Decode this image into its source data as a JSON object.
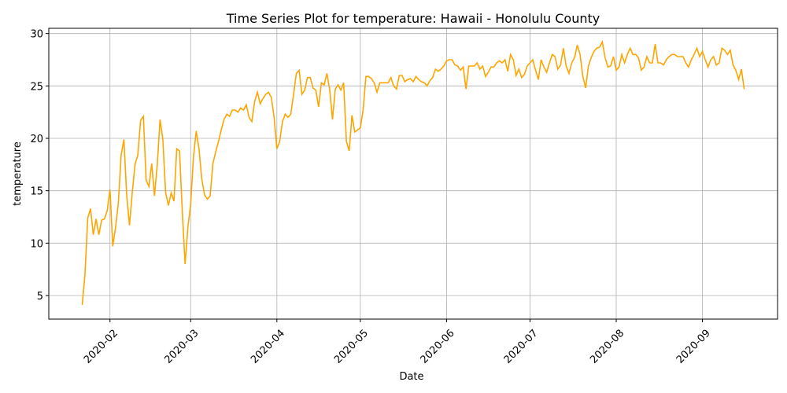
{
  "chart_data": {
    "type": "line",
    "title": "Time Series Plot for temperature: Hawaii - Honolulu County",
    "xlabel": "Date",
    "ylabel": "temperature",
    "color": "#ffa500",
    "grid": true,
    "xlim": [
      "2020-01-10",
      "2020-09-28"
    ],
    "xticks": [
      {
        "value": "2020-02-01",
        "label": "2020-02"
      },
      {
        "value": "2020-03-01",
        "label": "2020-03"
      },
      {
        "value": "2020-04-01",
        "label": "2020-04"
      },
      {
        "value": "2020-05-01",
        "label": "2020-05"
      },
      {
        "value": "2020-06-01",
        "label": "2020-06"
      },
      {
        "value": "2020-07-01",
        "label": "2020-07"
      },
      {
        "value": "2020-08-01",
        "label": "2020-08"
      },
      {
        "value": "2020-09-01",
        "label": "2020-09"
      }
    ],
    "ylim": [
      2.75,
      30.5
    ],
    "yticks": [
      5,
      10,
      15,
      20,
      25,
      30
    ],
    "x": [
      "2020-01-22",
      "2020-01-23",
      "2020-01-24",
      "2020-01-25",
      "2020-01-26",
      "2020-01-27",
      "2020-01-28",
      "2020-01-29",
      "2020-01-30",
      "2020-01-31",
      "2020-02-01",
      "2020-02-02",
      "2020-02-03",
      "2020-02-04",
      "2020-02-05",
      "2020-02-06",
      "2020-02-07",
      "2020-02-08",
      "2020-02-09",
      "2020-02-10",
      "2020-02-11",
      "2020-02-12",
      "2020-02-13",
      "2020-02-14",
      "2020-02-15",
      "2020-02-16",
      "2020-02-17",
      "2020-02-18",
      "2020-02-19",
      "2020-02-20",
      "2020-02-21",
      "2020-02-22",
      "2020-02-23",
      "2020-02-24",
      "2020-02-25",
      "2020-02-26",
      "2020-02-27",
      "2020-02-28",
      "2020-02-29",
      "2020-03-01",
      "2020-03-02",
      "2020-03-03",
      "2020-03-04",
      "2020-03-05",
      "2020-03-06",
      "2020-03-07",
      "2020-03-08",
      "2020-03-09",
      "2020-03-10",
      "2020-03-11",
      "2020-03-12",
      "2020-03-13",
      "2020-03-14",
      "2020-03-15",
      "2020-03-16",
      "2020-03-17",
      "2020-03-18",
      "2020-03-19",
      "2020-03-20",
      "2020-03-21",
      "2020-03-22",
      "2020-03-23",
      "2020-03-24",
      "2020-03-25",
      "2020-03-26",
      "2020-03-27",
      "2020-03-28",
      "2020-03-29",
      "2020-03-30",
      "2020-03-31",
      "2020-04-01",
      "2020-04-02",
      "2020-04-03",
      "2020-04-04",
      "2020-04-05",
      "2020-04-06",
      "2020-04-07",
      "2020-04-08",
      "2020-04-09",
      "2020-04-10",
      "2020-04-11",
      "2020-04-12",
      "2020-04-13",
      "2020-04-14",
      "2020-04-15",
      "2020-04-16",
      "2020-04-17",
      "2020-04-18",
      "2020-04-19",
      "2020-04-20",
      "2020-04-21",
      "2020-04-22",
      "2020-04-23",
      "2020-04-24",
      "2020-04-25",
      "2020-04-26",
      "2020-04-27",
      "2020-04-28",
      "2020-04-29",
      "2020-04-30",
      "2020-05-01",
      "2020-05-02",
      "2020-05-03",
      "2020-05-04",
      "2020-05-05",
      "2020-05-06",
      "2020-05-07",
      "2020-05-08",
      "2020-05-09",
      "2020-05-10",
      "2020-05-11",
      "2020-05-12",
      "2020-05-13",
      "2020-05-14",
      "2020-05-15",
      "2020-05-16",
      "2020-05-17",
      "2020-05-18",
      "2020-05-19",
      "2020-05-20",
      "2020-05-21",
      "2020-05-22",
      "2020-05-23",
      "2020-05-24",
      "2020-05-25",
      "2020-05-26",
      "2020-05-27",
      "2020-05-28",
      "2020-05-29",
      "2020-05-30",
      "2020-05-31",
      "2020-06-01",
      "2020-06-02",
      "2020-06-03",
      "2020-06-04",
      "2020-06-05",
      "2020-06-06",
      "2020-06-07",
      "2020-06-08",
      "2020-06-09",
      "2020-06-10",
      "2020-06-11",
      "2020-06-12",
      "2020-06-13",
      "2020-06-14",
      "2020-06-15",
      "2020-06-16",
      "2020-06-17",
      "2020-06-18",
      "2020-06-19",
      "2020-06-20",
      "2020-06-21",
      "2020-06-22",
      "2020-06-23",
      "2020-06-24",
      "2020-06-25",
      "2020-06-26",
      "2020-06-27",
      "2020-06-28",
      "2020-06-29",
      "2020-06-30",
      "2020-07-01",
      "2020-07-02",
      "2020-07-03",
      "2020-07-04",
      "2020-07-05",
      "2020-07-06",
      "2020-07-07",
      "2020-07-08",
      "2020-07-09",
      "2020-07-10",
      "2020-07-11",
      "2020-07-12",
      "2020-07-13",
      "2020-07-14",
      "2020-07-15",
      "2020-07-16",
      "2020-07-17",
      "2020-07-18",
      "2020-07-19",
      "2020-07-20",
      "2020-07-21",
      "2020-07-22",
      "2020-07-23",
      "2020-07-24",
      "2020-07-25",
      "2020-07-26",
      "2020-07-27",
      "2020-07-28",
      "2020-07-29",
      "2020-07-30",
      "2020-07-31",
      "2020-08-01",
      "2020-08-02",
      "2020-08-03",
      "2020-08-04",
      "2020-08-05",
      "2020-08-06",
      "2020-08-07",
      "2020-08-08",
      "2020-08-09",
      "2020-08-10",
      "2020-08-11",
      "2020-08-12",
      "2020-08-13",
      "2020-08-14",
      "2020-08-15",
      "2020-08-16",
      "2020-08-17",
      "2020-08-18",
      "2020-08-19",
      "2020-08-20",
      "2020-08-21",
      "2020-08-22",
      "2020-08-23",
      "2020-08-24",
      "2020-08-25",
      "2020-08-26",
      "2020-08-27",
      "2020-08-28",
      "2020-08-29",
      "2020-08-30",
      "2020-08-31",
      "2020-09-01",
      "2020-09-02",
      "2020-09-03",
      "2020-09-04",
      "2020-09-05",
      "2020-09-06",
      "2020-09-07",
      "2020-09-08",
      "2020-09-09",
      "2020-09-10",
      "2020-09-11",
      "2020-09-12",
      "2020-09-13",
      "2020-09-14",
      "2020-09-15",
      "2020-09-16"
    ],
    "values": [
      4.1,
      7.0,
      12.4,
      13.3,
      10.8,
      12.3,
      10.8,
      12.2,
      12.3,
      13.1,
      15.1,
      9.7,
      11.5,
      13.8,
      18.4,
      19.9,
      14.6,
      11.7,
      14.8,
      17.5,
      18.4,
      21.7,
      22.1,
      16.0,
      15.4,
      17.6,
      14.5,
      17.5,
      21.8,
      19.9,
      14.8,
      13.6,
      14.8,
      14.0,
      19.0,
      18.8,
      13.0,
      8.0,
      11.5,
      13.7,
      18.2,
      20.7,
      19.0,
      16.1,
      14.6,
      14.2,
      14.5,
      17.6,
      18.7,
      19.7,
      20.8,
      21.8,
      22.3,
      22.1,
      22.7,
      22.7,
      22.5,
      22.9,
      22.7,
      23.2,
      22.0,
      21.6,
      23.5,
      24.4,
      23.3,
      23.8,
      24.2,
      24.4,
      23.9,
      22.0,
      19.0,
      19.7,
      21.6,
      22.3,
      22.0,
      22.3,
      24.2,
      26.2,
      26.5,
      24.2,
      24.6,
      25.8,
      25.8,
      24.8,
      24.6,
      23.0,
      25.3,
      25.1,
      26.2,
      24.6,
      21.8,
      24.7,
      25.1,
      24.6,
      25.3,
      19.7,
      18.8,
      22.2,
      20.6,
      20.8,
      21.0,
      22.7,
      25.9,
      25.9,
      25.7,
      25.3,
      24.4,
      25.3,
      25.3,
      25.3,
      25.3,
      25.8,
      25.0,
      24.7,
      26.0,
      26.0,
      25.4,
      25.6,
      25.7,
      25.4,
      25.9,
      25.6,
      25.4,
      25.3,
      25.0,
      25.5,
      25.8,
      26.6,
      26.4,
      26.6,
      26.9,
      27.4,
      27.5,
      27.5,
      27.0,
      26.9,
      26.5,
      26.8,
      24.7,
      26.9,
      26.9,
      26.9,
      27.2,
      26.6,
      26.9,
      25.9,
      26.3,
      26.8,
      26.8,
      27.2,
      27.4,
      27.2,
      27.5,
      26.4,
      28.0,
      27.5,
      26.0,
      26.6,
      25.8,
      26.1,
      26.9,
      27.2,
      27.5,
      26.5,
      25.6,
      27.5,
      26.8,
      26.3,
      27.2,
      28.0,
      27.8,
      26.6,
      27.0,
      28.6,
      26.9,
      26.2,
      27.2,
      27.7,
      28.9,
      28.0,
      25.9,
      24.8,
      26.9,
      27.7,
      28.3,
      28.6,
      28.7,
      29.2,
      27.7,
      26.8,
      26.9,
      27.8,
      26.5,
      26.8,
      28.0,
      27.2,
      28.0,
      28.6,
      28.0,
      28.0,
      27.7,
      26.5,
      26.8,
      27.8,
      27.2,
      27.2,
      29.0,
      27.2,
      27.2,
      27.0,
      27.5,
      27.8,
      28.0,
      28.0,
      27.8,
      27.8,
      27.8,
      27.2,
      26.8,
      27.5,
      28.0,
      28.6,
      27.8,
      28.3,
      27.5,
      26.8,
      27.5,
      27.8,
      27.0,
      27.2,
      28.6,
      28.4,
      28.0,
      28.4,
      27.0,
      26.5,
      25.6,
      26.6,
      24.7
    ]
  }
}
